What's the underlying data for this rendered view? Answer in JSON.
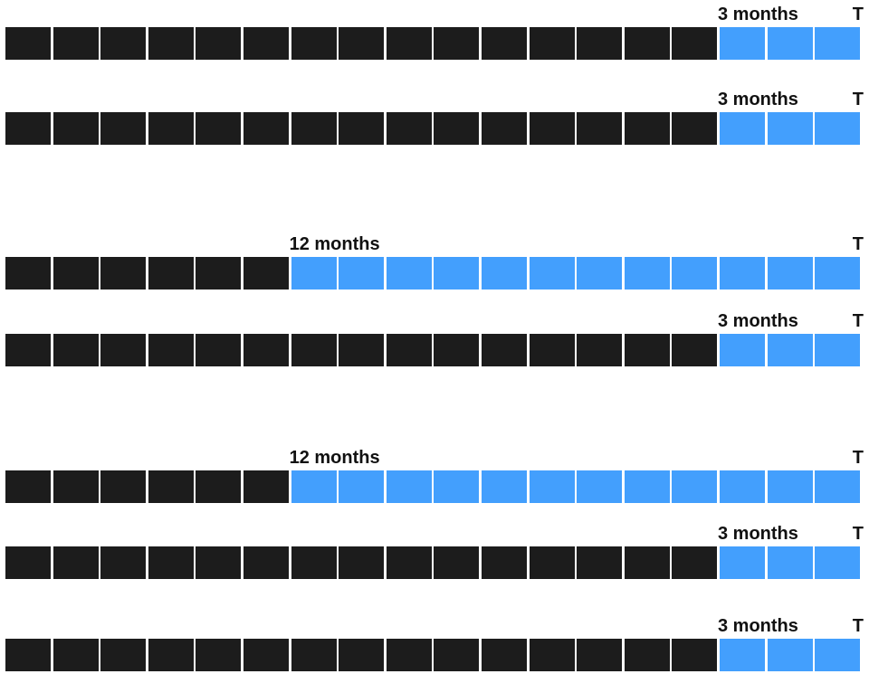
{
  "colors": {
    "past": "#1c1c1c",
    "window": "#439ffd",
    "text": "#111111",
    "background": "#ffffff"
  },
  "total_cells": 18,
  "rows": [
    {
      "label": "3 months",
      "window_cells": 3,
      "end_label": "T"
    },
    {
      "label": "3 months",
      "window_cells": 3,
      "end_label": "T"
    },
    {
      "label": "12 months",
      "window_cells": 12,
      "end_label": "T"
    },
    {
      "label": "3 months",
      "window_cells": 3,
      "end_label": "T"
    },
    {
      "label": "12 months",
      "window_cells": 12,
      "end_label": "T"
    },
    {
      "label": "3 months",
      "window_cells": 3,
      "end_label": "T"
    },
    {
      "label": "3 months",
      "window_cells": 3,
      "end_label": "T"
    }
  ]
}
